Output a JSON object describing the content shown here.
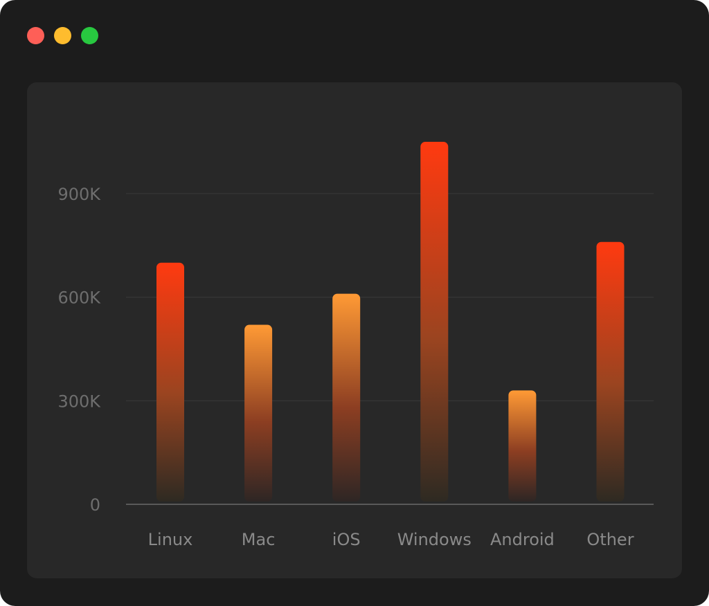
{
  "window": {
    "controls": [
      {
        "name": "close",
        "color": "#fe5f57"
      },
      {
        "name": "minimize",
        "color": "#febc2e"
      },
      {
        "name": "maximize",
        "color": "#28c840"
      }
    ]
  },
  "chart_data": {
    "type": "bar",
    "categories": [
      "Linux",
      "Mac",
      "iOS",
      "Windows",
      "Android",
      "Other"
    ],
    "values": [
      700000,
      520000,
      610000,
      1050000,
      330000,
      760000
    ],
    "bar_styles": [
      "red",
      "orange",
      "orange",
      "red",
      "orange",
      "red"
    ],
    "colors": {
      "red": "#ff3a10",
      "orange": "#ff9a35",
      "fade": "#2e2a22"
    },
    "yticks": [
      0,
      300000,
      600000,
      900000
    ],
    "ytick_labels": [
      "0",
      "300K",
      "600K",
      "900K"
    ],
    "ylim": [
      0,
      1100000
    ],
    "grid": true,
    "title": "",
    "xlabel": "",
    "ylabel": ""
  }
}
